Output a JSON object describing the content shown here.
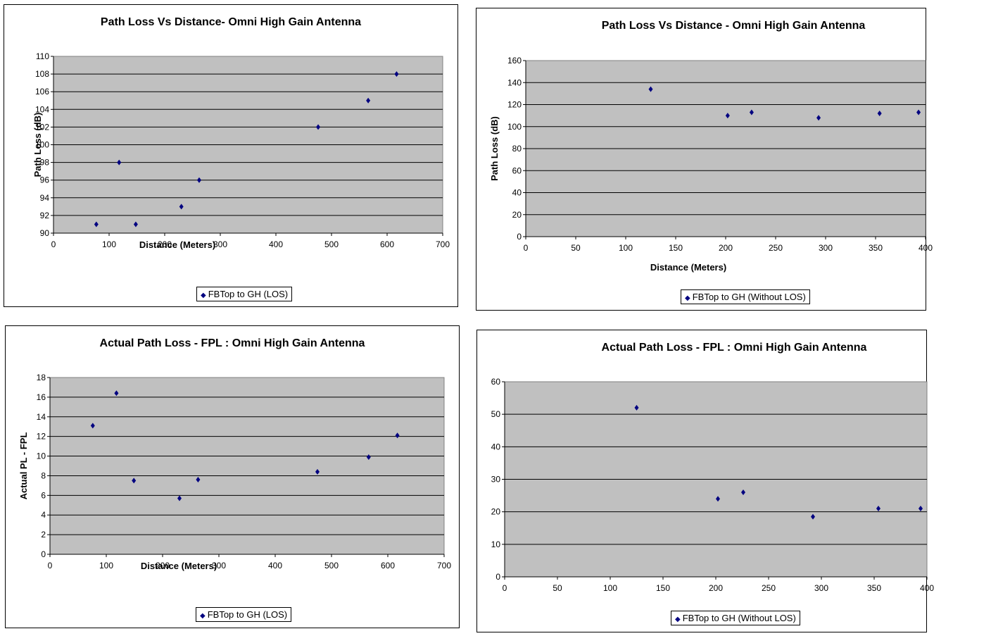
{
  "chart_data": [
    {
      "type": "scatter",
      "title": "Path Loss Vs Distance- Omni High Gain Antenna",
      "xlabel": "Distance (Meters)",
      "ylabel": "Path Loss (dB)",
      "xlim": [
        0,
        700
      ],
      "ylim": [
        90,
        110
      ],
      "xticks": [
        0,
        100,
        200,
        300,
        400,
        500,
        600,
        700
      ],
      "yticks": [
        90,
        92,
        94,
        96,
        98,
        100,
        102,
        104,
        106,
        108,
        110
      ],
      "grid": true,
      "legend": "bottom",
      "series": [
        {
          "name": "FBTop to GH (LOS)",
          "color": "#000080",
          "x": [
            77,
            118,
            148,
            230,
            262,
            476,
            566,
            617
          ],
          "y": [
            91,
            98,
            91,
            93,
            96,
            102,
            105,
            108
          ]
        }
      ]
    },
    {
      "type": "scatter",
      "title": "Path Loss Vs Distance - Omni High Gain Antenna",
      "xlabel": "Distance (Meters)",
      "ylabel": "Path Loss (dB)",
      "xlim": [
        0,
        400
      ],
      "ylim": [
        0,
        160
      ],
      "xticks": [
        0,
        50,
        100,
        150,
        200,
        250,
        300,
        350,
        400
      ],
      "yticks": [
        0,
        20,
        40,
        60,
        80,
        100,
        120,
        140,
        160
      ],
      "grid": true,
      "legend": "bottom",
      "series": [
        {
          "name": "FBTop to GH (Without LOS)",
          "color": "#000080",
          "x": [
            125,
            202,
            226,
            293,
            354,
            393
          ],
          "y": [
            134,
            110,
            113,
            108,
            112,
            113
          ]
        }
      ]
    },
    {
      "type": "scatter",
      "title": "Actual Path Loss - FPL : Omni High Gain Antenna",
      "xlabel": "Distance (Meters)",
      "ylabel": "Actual  PL - FPL",
      "xlim": [
        0,
        700
      ],
      "ylim": [
        0,
        18
      ],
      "xticks": [
        0,
        100,
        200,
        300,
        400,
        500,
        600,
        700
      ],
      "yticks": [
        0,
        2,
        4,
        6,
        8,
        10,
        12,
        14,
        16,
        18
      ],
      "grid": true,
      "legend": "bottom",
      "series": [
        {
          "name": "FBTop to GH (LOS)",
          "color": "#000080",
          "x": [
            76,
            118,
            149,
            230,
            263,
            475,
            566,
            617
          ],
          "y": [
            13.1,
            16.4,
            7.5,
            5.7,
            7.6,
            8.4,
            9.9,
            12.1
          ]
        }
      ]
    },
    {
      "type": "scatter",
      "title": "Actual Path Loss - FPL : Omni High Gain Antenna",
      "xlabel": "",
      "ylabel": "",
      "xlim": [
        0,
        400
      ],
      "ylim": [
        0,
        60
      ],
      "xticks": [
        0,
        50,
        100,
        150,
        200,
        250,
        300,
        350,
        400
      ],
      "yticks": [
        0,
        10,
        20,
        30,
        40,
        50,
        60
      ],
      "grid": true,
      "legend": "bottom",
      "series": [
        {
          "name": "FBTop to GH (Without LOS)",
          "color": "#000080",
          "x": [
            125,
            202,
            226,
            292,
            354,
            394
          ],
          "y": [
            52,
            24,
            26,
            18.5,
            21,
            21
          ]
        }
      ]
    }
  ],
  "legend_marker": "◆"
}
